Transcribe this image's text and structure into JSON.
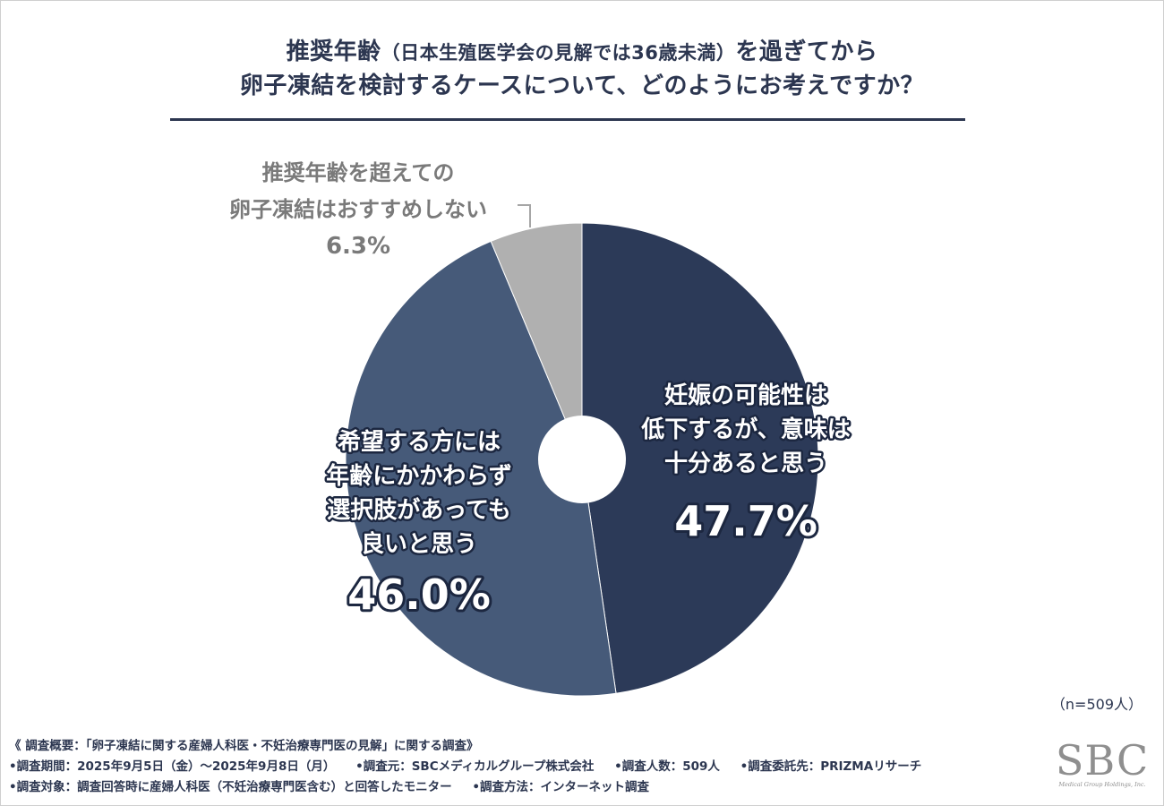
{
  "title": {
    "line1_a": "推奨年齢",
    "line1_paren": "（日本生殖医学会の見解では36歳未満）",
    "line1_b": "を過ぎてから",
    "line2": "卵子凍結を検討するケースについて、どのようにお考えですか？"
  },
  "colors": {
    "slice_main": "#2c3a58",
    "slice_second": "#465a79",
    "slice_third": "#b0b0b0",
    "title": "#2c3650",
    "label_gray": "#7a7a7a"
  },
  "chart_data": {
    "type": "pie",
    "style": "donut",
    "start": "12 o'clock, clockwise",
    "slices": [
      {
        "label_lines": [
          "妊娠の可能性は",
          "低下するが、意味は",
          "十分あると思う"
        ],
        "value": 47.7,
        "display": "47.7%"
      },
      {
        "label_lines": [
          "希望する方には",
          "年齢にかかわらず",
          "選択肢があっても",
          "良いと思う"
        ],
        "value": 46.0,
        "display": "46.0%"
      },
      {
        "label_lines": [
          "推奨年齢を超えての",
          "卵子凍結はおすすめしない"
        ],
        "value": 6.3,
        "display": "6.3%"
      }
    ]
  },
  "sample_size": "（n=509人）",
  "footer": {
    "survey_title": "《 調査概要：「卵子凍結に関する産婦人科医・不妊治療専門医の見解」に関する調査》",
    "row2": [
      "•調査期間：2025年9月5日（金）～2025年9月8日（月）",
      "•調査元：SBCメディカルグループ株式会社",
      "•調査人数：509人",
      "•調査委託先：PRIZMAリサーチ"
    ],
    "row3": [
      "•調査対象：調査回答時に産婦人科医（不妊治療専門医含む）と回答したモニター",
      "•調査方法：インターネット調査"
    ]
  },
  "logo": {
    "word": "SBC",
    "sub": "Medical Group Holdings, Inc."
  }
}
